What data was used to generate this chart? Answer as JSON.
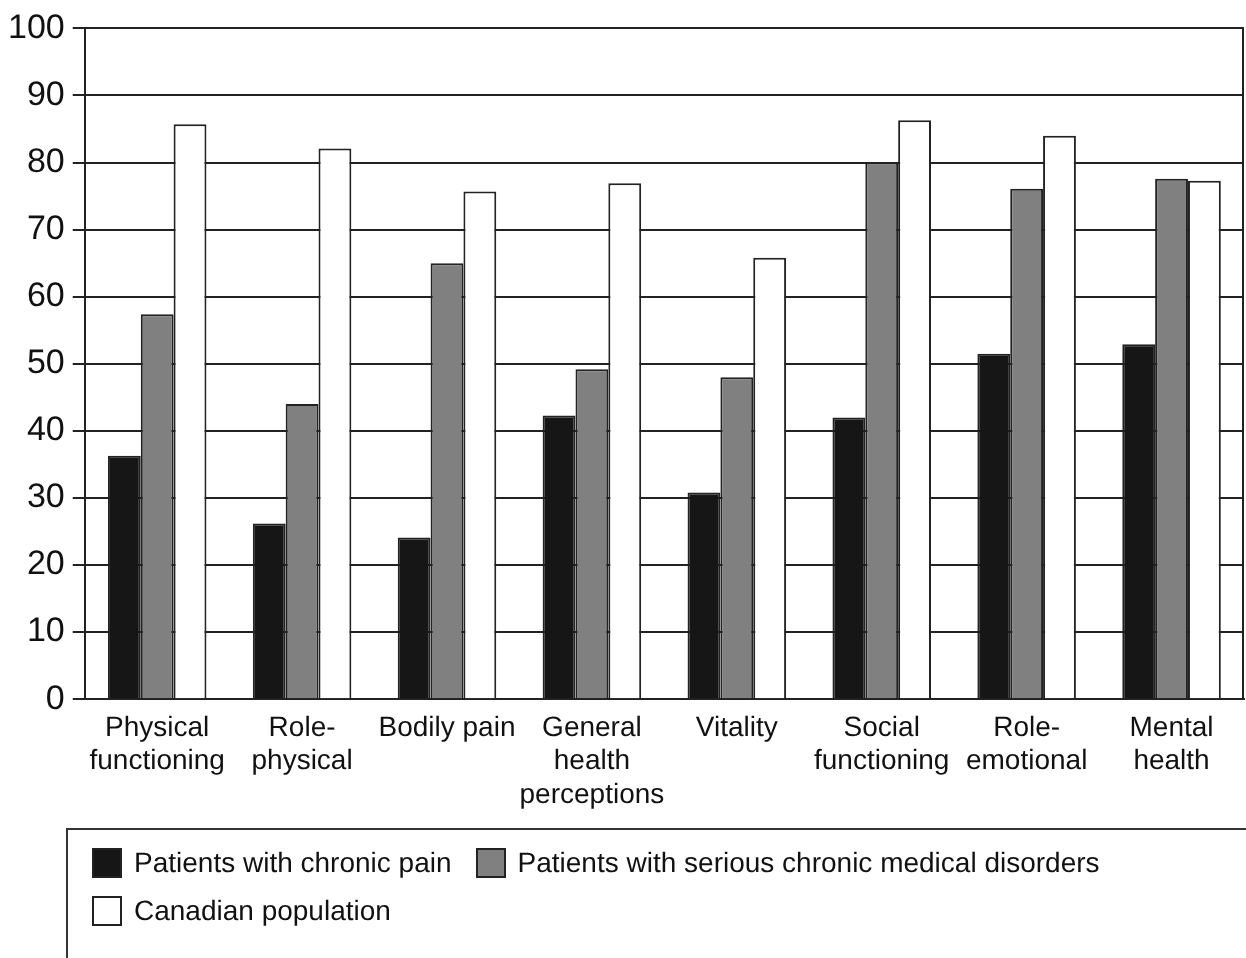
{
  "chart_data": {
    "type": "bar",
    "categories": [
      "Physical functioning",
      "Role-physical",
      "Bodily pain",
      "General health perceptions",
      "Vitality",
      "Social functioning",
      "Role-emotional",
      "Mental health"
    ],
    "series": [
      {
        "name": "Patients with chronic pain",
        "color": "#161616",
        "values": [
          36.3,
          26.2,
          24.1,
          42.3,
          30.8,
          42.0,
          51.5,
          52.9
        ]
      },
      {
        "name": "Patients with serious chronic medical disorders",
        "color": "#808080",
        "values": [
          57.4,
          44.0,
          65.0,
          49.2,
          48.0,
          80.0,
          76.1,
          77.6
        ]
      },
      {
        "name": "Canadian population",
        "color": "#ffffff",
        "values": [
          85.7,
          82.1,
          75.7,
          76.9,
          65.8,
          86.3,
          84.0,
          77.3
        ]
      }
    ],
    "ylim": [
      0,
      100
    ],
    "yticks": [
      0,
      10,
      20,
      30,
      40,
      50,
      60,
      70,
      80,
      90,
      100
    ],
    "grid": "y",
    "legend": "bottom"
  }
}
